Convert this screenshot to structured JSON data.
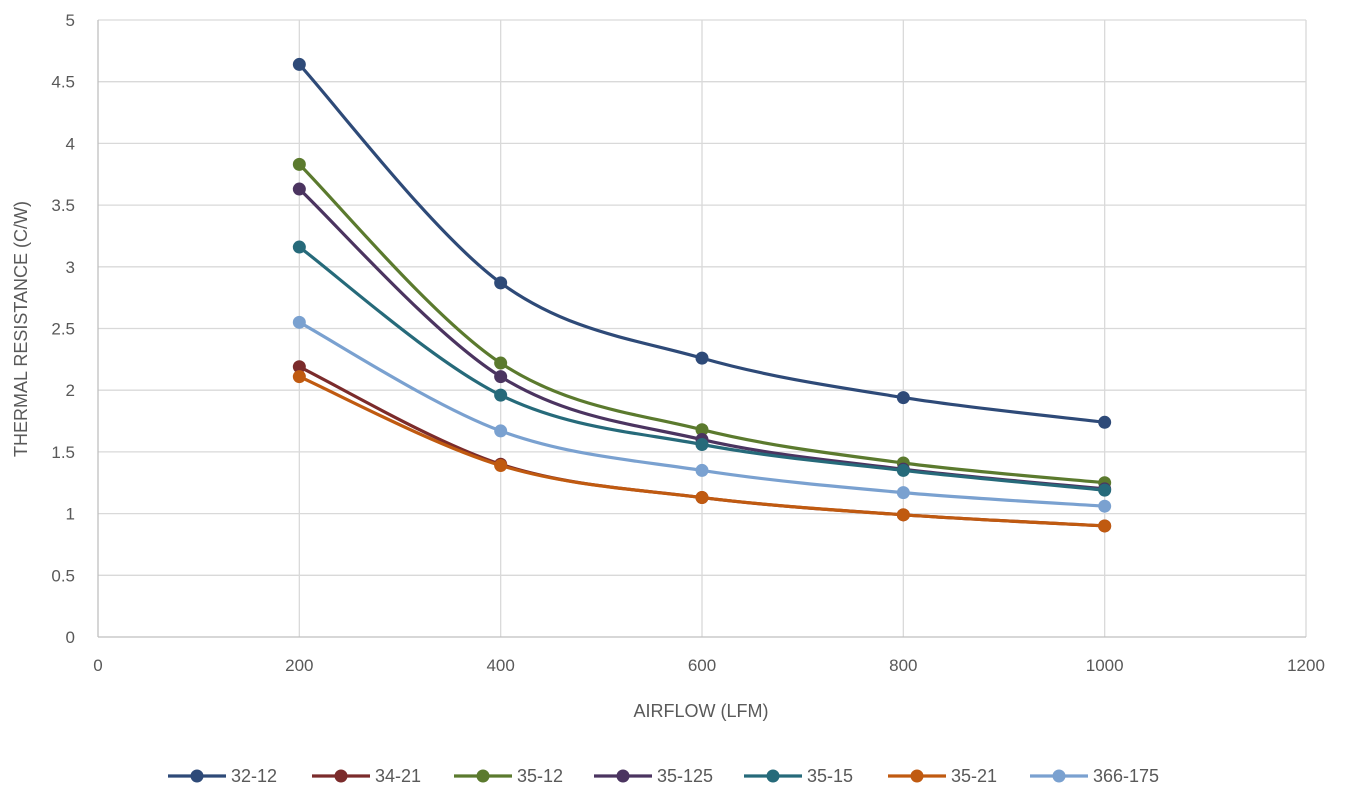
{
  "chart_data": {
    "type": "scatter",
    "title": "",
    "xlabel": "AIRFLOW (LFM)",
    "ylabel": "THERMAL RESISTANCE (C/W)",
    "xlim": [
      0,
      1200
    ],
    "ylim": [
      0,
      5
    ],
    "x_ticks": [
      0,
      200,
      400,
      600,
      800,
      1000,
      1200
    ],
    "y_ticks": [
      0,
      0.5,
      1,
      1.5,
      2,
      2.5,
      3,
      3.5,
      4,
      4.5,
      5
    ],
    "x_tick_labels": [
      "0",
      "200",
      "400",
      "600",
      "800",
      "1000",
      "1200"
    ],
    "y_tick_labels": [
      "0",
      "0.5",
      "1",
      "1.5",
      "2",
      "2.5",
      "3",
      "3.5",
      "4",
      "4.5",
      "5"
    ],
    "grid": true,
    "smooth_lines": true,
    "markers": true,
    "legend_position": "bottom",
    "x": [
      200,
      400,
      600,
      800,
      1000
    ],
    "series": [
      {
        "name": "32-12",
        "color": "#2e4a78",
        "values": [
          4.64,
          2.87,
          2.26,
          1.94,
          1.74
        ]
      },
      {
        "name": "34-21",
        "color": "#7b2b2b",
        "values": [
          2.19,
          1.4,
          1.13,
          0.99,
          0.9
        ]
      },
      {
        "name": "35-12",
        "color": "#5b7a2e",
        "values": [
          3.83,
          2.22,
          1.68,
          1.41,
          1.25
        ]
      },
      {
        "name": "35-125",
        "color": "#4b3460",
        "values": [
          3.63,
          2.11,
          1.6,
          1.36,
          1.2
        ]
      },
      {
        "name": "35-15",
        "color": "#266a7a",
        "values": [
          3.16,
          1.96,
          1.56,
          1.35,
          1.19
        ]
      },
      {
        "name": "35-21",
        "color": "#c05a10",
        "values": [
          2.11,
          1.39,
          1.13,
          0.99,
          0.9
        ]
      },
      {
        "name": "366-175",
        "color": "#7aa1d0",
        "values": [
          2.55,
          1.67,
          1.35,
          1.17,
          1.06
        ]
      }
    ]
  }
}
